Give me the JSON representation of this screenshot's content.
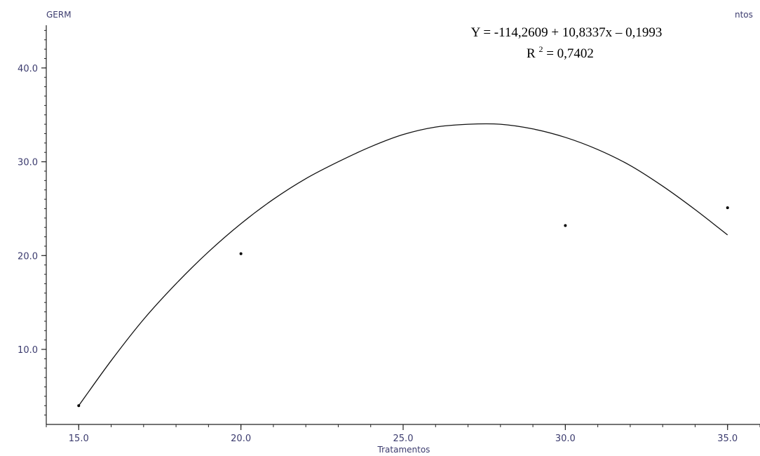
{
  "chart_data": {
    "type": "scatter",
    "title": "",
    "xlabel": "Tratamentos",
    "ylabel": "GERM",
    "corner_label": "ntos",
    "xlim": [
      14.0,
      36.0
    ],
    "ylim": [
      2.0,
      45.0
    ],
    "x_ticks": [
      15.0,
      20.0,
      25.0,
      30.0,
      35.0
    ],
    "x_tick_labels": [
      "15.0",
      "20.0",
      "25.0",
      "30.0",
      "35.0"
    ],
    "y_ticks": [
      10.0,
      20.0,
      30.0,
      40.0
    ],
    "y_tick_labels": [
      "10.0",
      "20.0",
      "30.0",
      "40.0"
    ],
    "grid": false,
    "series": [
      {
        "kind": "points",
        "x": [
          15.0,
          20.0,
          30.0,
          35.0
        ],
        "y": [
          4.0,
          20.2,
          23.2,
          25.1
        ]
      },
      {
        "kind": "fitted-curve",
        "x": [
          15,
          16,
          17,
          18,
          19,
          20,
          21,
          22,
          23,
          24,
          25,
          26,
          27,
          28,
          29,
          30,
          31,
          32,
          33,
          34,
          35
        ],
        "y": [
          4.0,
          8.8,
          13.2,
          17.0,
          20.4,
          23.4,
          26.0,
          28.2,
          30.0,
          31.6,
          32.9,
          33.7,
          34.0,
          34.0,
          33.5,
          32.6,
          31.3,
          29.6,
          27.4,
          24.9,
          22.2
        ]
      }
    ],
    "annotations": {
      "equation": "Y = -114,2609 + 10,8337x – 0,1993",
      "r2_prefix": "R",
      "r2_superscript": "2",
      "r2_value": " = 0,7402"
    }
  }
}
